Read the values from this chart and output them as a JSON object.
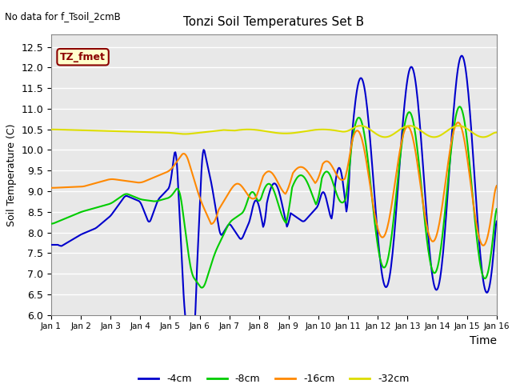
{
  "title": "Tonzi Soil Temperatures Set B",
  "xlabel": "Time",
  "ylabel": "Soil Temperature (C)",
  "no_data_label": "No data for f_Tsoil_2cmB",
  "annotation_label": "TZ_fmet",
  "annotation_color": "#8B0000",
  "annotation_bg": "#FFFFCC",
  "annotation_border": "#8B0000",
  "ylim": [
    6.0,
    12.8
  ],
  "yticks": [
    6.0,
    6.5,
    7.0,
    7.5,
    8.0,
    8.5,
    9.0,
    9.5,
    10.0,
    10.5,
    11.0,
    11.5,
    12.0,
    12.5
  ],
  "colors": {
    "4cm": "#0000CC",
    "8cm": "#00CC00",
    "16cm": "#FF8800",
    "32cm": "#DDDD00"
  },
  "legend_labels": [
    "-4cm",
    "-8cm",
    "-16cm",
    "-32cm"
  ],
  "bg_color": "#E8E8E8",
  "grid_color": "#FFFFFF"
}
